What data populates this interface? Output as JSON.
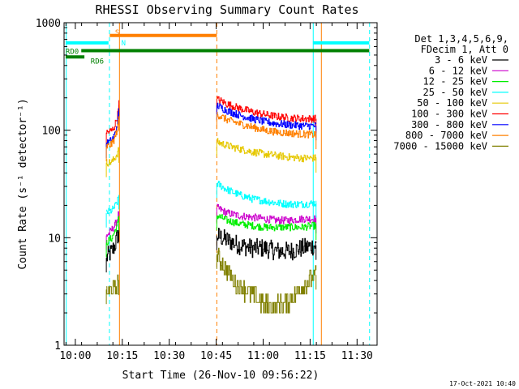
{
  "chart_data": {
    "type": "line",
    "title": "RHESSI Observing Summary Count Rates",
    "xlabel": "Start Time (26-Nov-10 09:56:22)",
    "ylabel": "Count Rate (s⁻¹ detector⁻¹)",
    "yscale": "log",
    "ylim": [
      1,
      1000
    ],
    "xlim": [
      0,
      100
    ],
    "x_unit": "minutes after 09:56:22",
    "x_ticks": [
      {
        "value": 3.6,
        "label": "10:00"
      },
      {
        "value": 18.6,
        "label": "10:15"
      },
      {
        "value": 33.6,
        "label": "10:30"
      },
      {
        "value": 48.6,
        "label": "10:45"
      },
      {
        "value": 63.6,
        "label": "11:00"
      },
      {
        "value": 78.6,
        "label": "11:15"
      },
      {
        "value": 93.6,
        "label": "11:30"
      }
    ],
    "y_ticks": [
      {
        "value": 1,
        "label": "1"
      },
      {
        "value": 10,
        "label": "10"
      },
      {
        "value": 100,
        "label": "100"
      },
      {
        "value": 1000,
        "label": "1000"
      }
    ],
    "legend_header": [
      "Det 1,3,4,5,6,9,",
      "FDecim 1, Att 0"
    ],
    "series": [
      {
        "name": "3 - 6 keV",
        "color": "#000000",
        "segments": [
          {
            "x": [
              13.5,
              14.4,
              15.3,
              16.2,
              17.1,
              17.5
            ],
            "y": [
              6.5,
              7.0,
              7.5,
              8.5,
              10.5,
              12.5
            ]
          },
          {
            "x": [
              48.8,
              52,
              56,
              60,
              64,
              68,
              72,
              76,
              80.5
            ],
            "y": [
              10.5,
              9.5,
              8.5,
              8.0,
              8.0,
              7.5,
              7.5,
              8.0,
              8.5
            ]
          }
        ]
      },
      {
        "name": "6 - 12 keV",
        "color": "#cc00cc",
        "segments": [
          {
            "x": [
              13.5,
              14.4,
              15.3,
              16.2,
              17.1,
              17.5
            ],
            "y": [
              10.5,
              11.0,
              12.0,
              13.0,
              15.5,
              17.5
            ]
          },
          {
            "x": [
              48.8,
              52,
              56,
              60,
              64,
              68,
              72,
              76,
              80.5
            ],
            "y": [
              19.0,
              17.0,
              16.0,
              15.5,
              15.0,
              14.5,
              14.5,
              15.0,
              15.0
            ]
          }
        ]
      },
      {
        "name": "12 - 25 keV",
        "color": "#00ee00",
        "segments": [
          {
            "x": [
              13.5,
              14.4,
              15.3,
              16.2,
              17.1,
              17.5
            ],
            "y": [
              9.0,
              9.5,
              10.0,
              11.5,
              13.5,
              16.0
            ]
          },
          {
            "x": [
              48.8,
              52,
              56,
              60,
              64,
              68,
              72,
              76,
              80.5
            ],
            "y": [
              16.0,
              14.5,
              13.5,
              13.0,
              12.5,
              12.5,
              12.5,
              12.5,
              13.0
            ]
          }
        ]
      },
      {
        "name": "25 - 50 keV",
        "color": "#00ffff",
        "segments": [
          {
            "x": [
              13.5,
              14.4,
              15.3,
              16.2,
              17.1,
              17.5
            ],
            "y": [
              17.0,
              17.5,
              18.0,
              19.5,
              22.0,
              25.0
            ]
          },
          {
            "x": [
              48.8,
              52,
              56,
              60,
              64,
              68,
              72,
              76,
              80.5
            ],
            "y": [
              32.0,
              28.0,
              25.0,
              23.0,
              22.0,
              21.0,
              20.5,
              20.5,
              21.0
            ]
          }
        ]
      },
      {
        "name": "50 - 100 keV",
        "color": "#e6c800",
        "segments": [
          {
            "x": [
              13.5,
              14.4,
              15.3,
              16.2,
              17.1,
              17.5
            ],
            "y": [
              50.0,
              50.0,
              51.0,
              55.0,
              62.0,
              68.0
            ]
          },
          {
            "x": [
              48.8,
              52,
              56,
              60,
              64,
              68,
              72,
              76,
              80.5
            ],
            "y": [
              78.0,
              72.0,
              67.0,
              63.0,
              60.0,
              58.0,
              56.0,
              55.0,
              55.0
            ]
          }
        ]
      },
      {
        "name": "100 - 300 keV",
        "color": "#ff0000",
        "segments": [
          {
            "x": [
              13.5,
              14.4,
              15.3,
              16.2,
              17.1,
              17.5
            ],
            "y": [
              95.0,
              97.0,
              100.0,
              110.0,
              140.0,
              190.0
            ]
          },
          {
            "x": [
              48.8,
              52,
              56,
              60,
              64,
              68,
              72,
              76,
              80.5
            ],
            "y": [
              195.0,
              175.0,
              160.0,
              148.0,
              140.0,
              134.0,
              130.0,
              128.0,
              128.0
            ]
          }
        ]
      },
      {
        "name": "300 - 800 keV",
        "color": "#0000ff",
        "segments": [
          {
            "x": [
              13.5,
              14.4,
              15.3,
              16.2,
              17.1,
              17.5
            ],
            "y": [
              75.0,
              78.0,
              82.0,
              92.0,
              120.0,
              160.0
            ]
          },
          {
            "x": [
              48.8,
              52,
              56,
              60,
              64,
              68,
              72,
              76,
              80.5
            ],
            "y": [
              170.0,
              152.0,
              138.0,
              128.0,
              120.0,
              115.0,
              112.0,
              110.0,
              110.0
            ]
          }
        ]
      },
      {
        "name": "800 - 7000 keV",
        "color": "#ff8000",
        "segments": [
          {
            "x": [
              13.5,
              14.4,
              15.3,
              16.2,
              17.1,
              17.5
            ],
            "y": [
              70.0,
              72.0,
              75.0,
              85.0,
              105.0,
              135.0
            ]
          },
          {
            "x": [
              48.8,
              52,
              56,
              60,
              64,
              68,
              72,
              76,
              80.5
            ],
            "y": [
              140.0,
              125.0,
              115.0,
              107.0,
              100.0,
              96.0,
              94.0,
              92.0,
              91.0
            ]
          }
        ]
      },
      {
        "name": "7000 - 15000 keV",
        "color": "#808000",
        "segments": [
          {
            "x": [
              13.5,
              14.4,
              15.3,
              16.2,
              17.1,
              17.5
            ],
            "y": [
              3.3,
              3.0,
              3.5,
              3.2,
              3.6,
              4.0
            ]
          },
          {
            "x": [
              48.8,
              50,
              52,
              54,
              56,
              60,
              64,
              68,
              72,
              76,
              80.5
            ],
            "y": [
              7.0,
              6.0,
              5.0,
              4.0,
              3.5,
              3.0,
              2.4,
              2.3,
              2.6,
              3.5,
              4.5
            ]
          }
        ]
      }
    ],
    "state_bars": [
      {
        "label": "",
        "color": "#00ffff",
        "value": 650,
        "segments": [
          [
            0.5,
            14.2
          ],
          [
            79.5,
            97.5
          ]
        ]
      },
      {
        "label": "S",
        "color": "#ff8000",
        "value": 760,
        "segments": [
          [
            14.6,
            48.8
          ]
        ]
      },
      {
        "label": "RD0",
        "color": "#008000",
        "value": 550,
        "segments": [
          [
            5.5,
            97.5
          ]
        ]
      },
      {
        "label": "RD6",
        "color": "#008000",
        "value": 480,
        "segments": [
          [
            0.5,
            6.5
          ]
        ]
      }
    ],
    "state_bar_labels": [
      "S",
      "N"
    ],
    "vertical_lines": [
      {
        "x": 0.7,
        "color": "#00ffff",
        "style": "solid"
      },
      {
        "x": 14.5,
        "color": "#00ffff",
        "style": "dashed"
      },
      {
        "x": 17.7,
        "color": "#ff8000",
        "style": "solid"
      },
      {
        "x": 48.8,
        "color": "#ff8000",
        "style": "dashed"
      },
      {
        "x": 79.6,
        "color": "#00ffff",
        "style": "solid"
      },
      {
        "x": 82.2,
        "color": "#ff8000",
        "style": "solid"
      },
      {
        "x": 97.6,
        "color": "#00ffff",
        "style": "dashed"
      }
    ],
    "footer_date": "17-Oct-2021 10:40"
  }
}
